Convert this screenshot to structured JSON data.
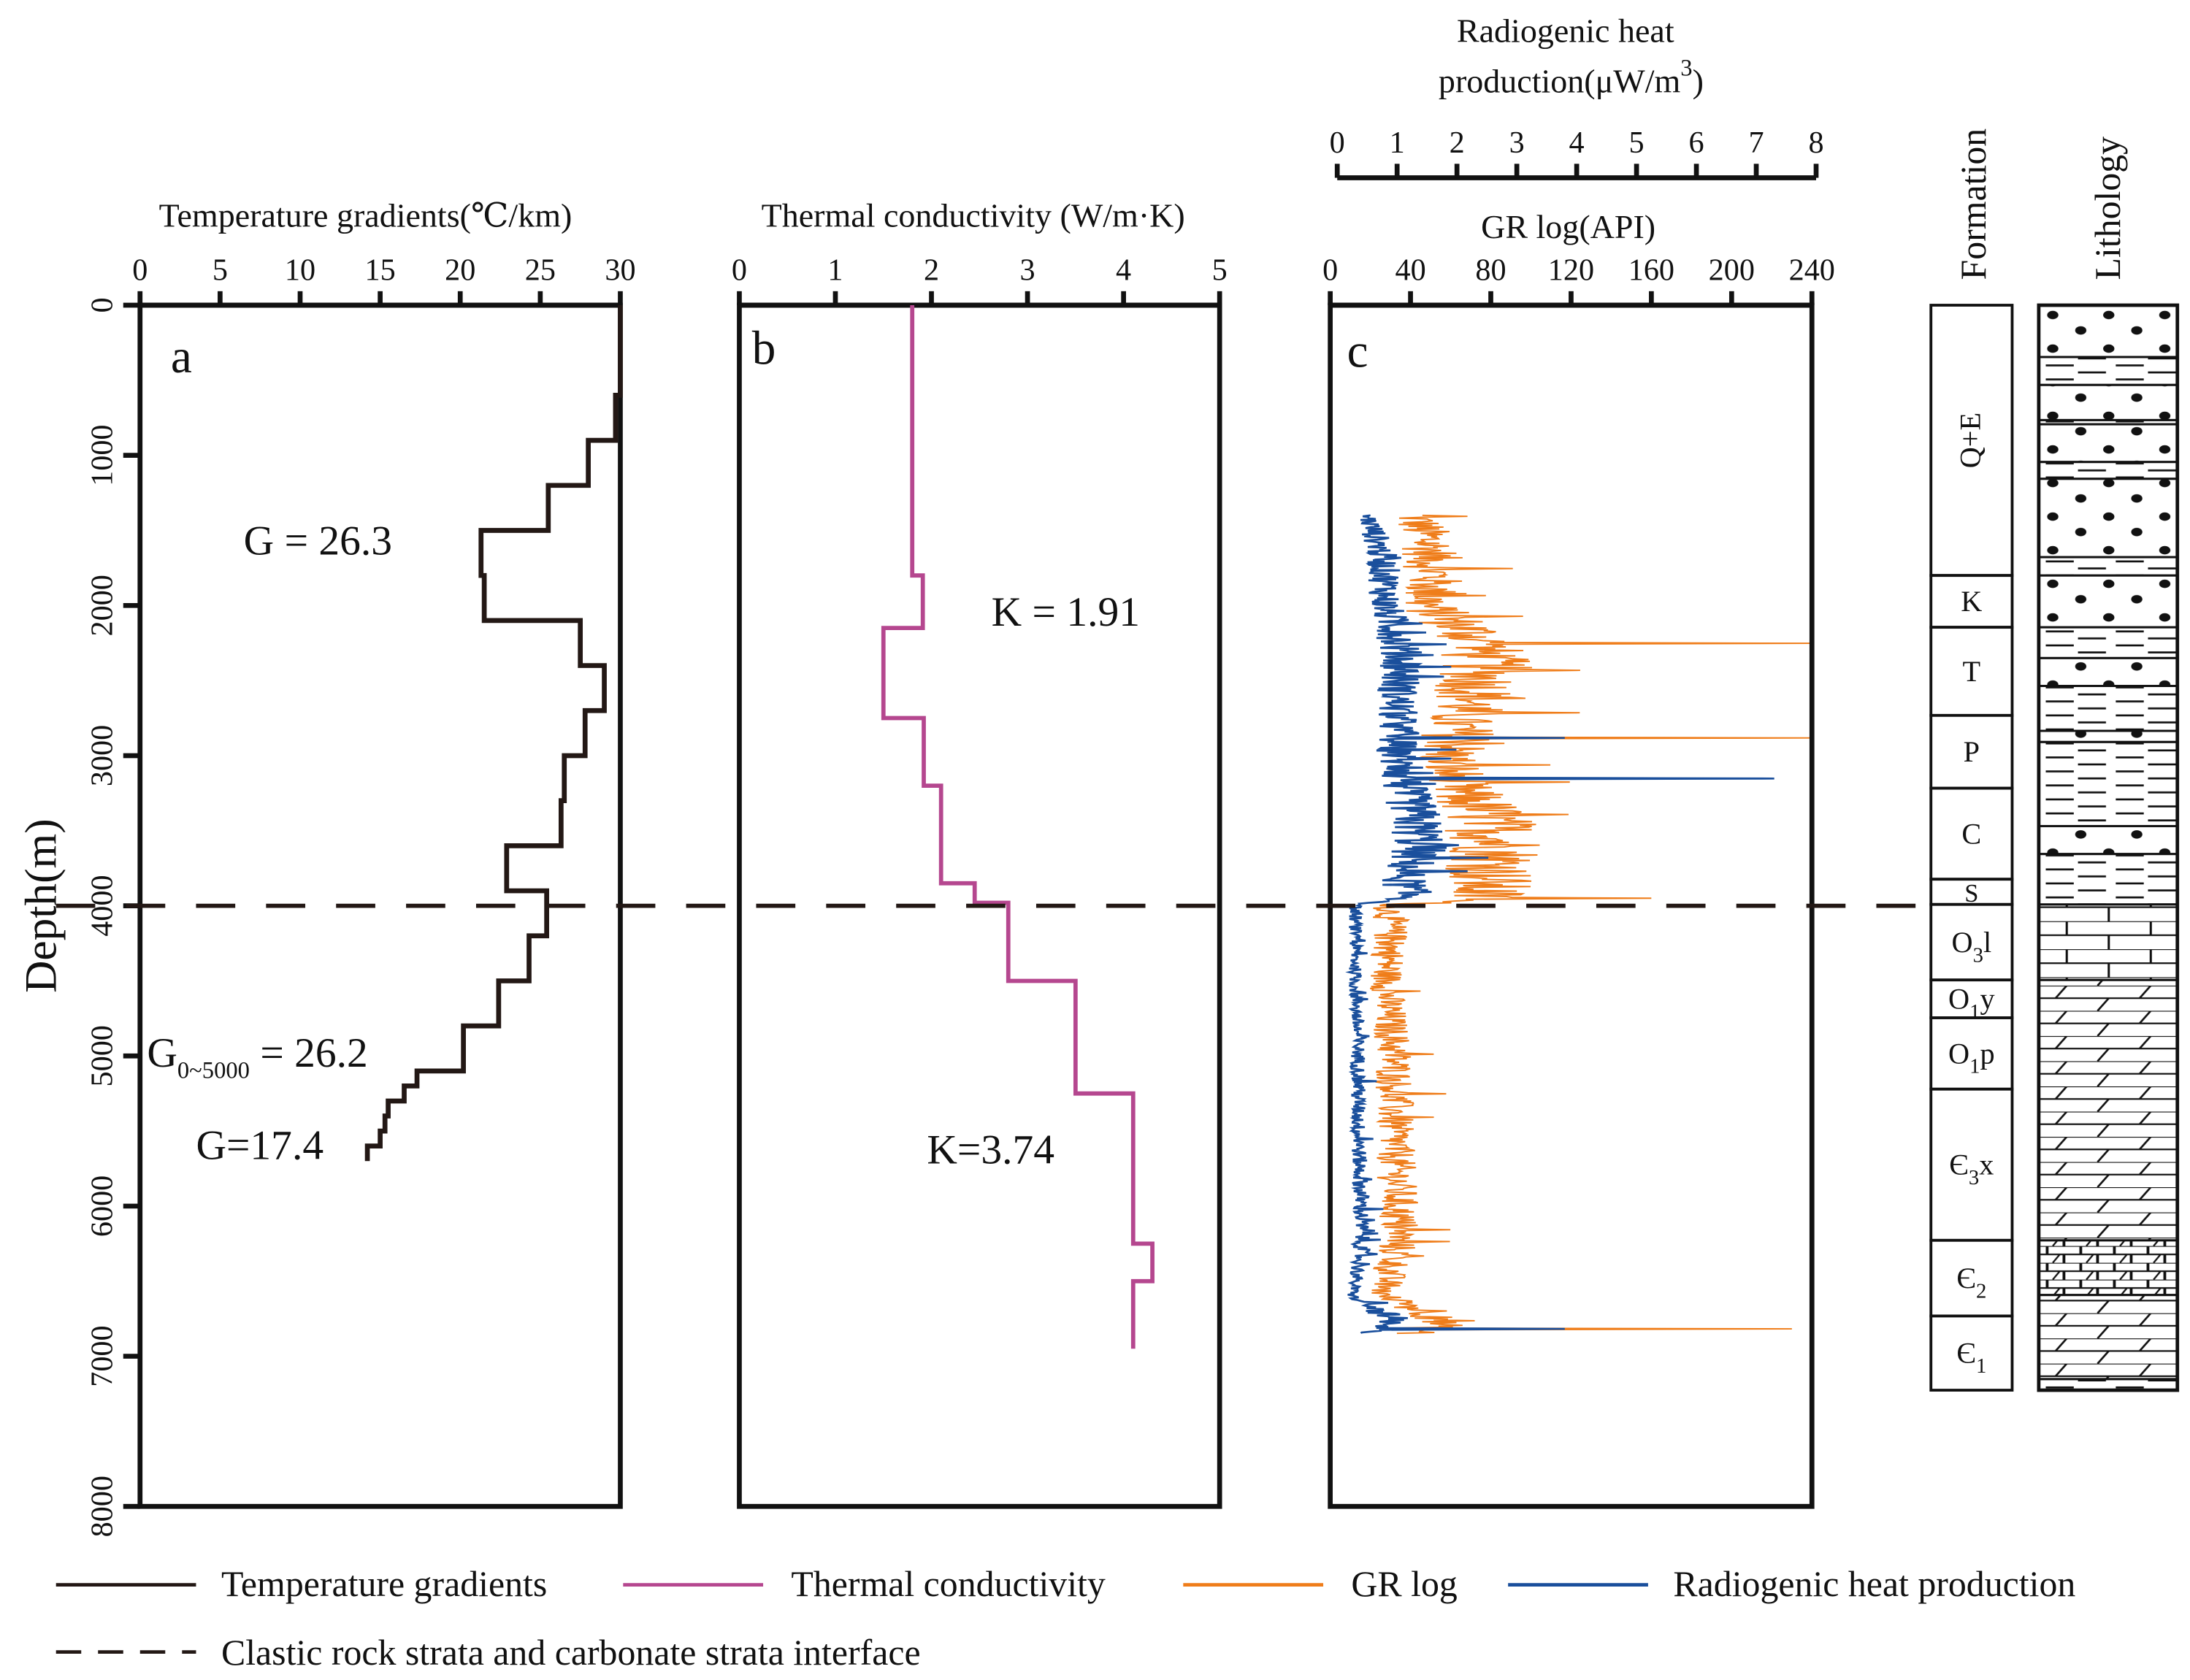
{
  "chart_data": [
    {
      "id": "a",
      "type": "line",
      "panel_label": "a",
      "xlabel": "Temperature gradients(℃/km)",
      "xlim": [
        0,
        30
      ],
      "xticks": [
        "0",
        "5",
        "10",
        "15",
        "20",
        "25",
        "30"
      ],
      "ylabel": "Depth(m)",
      "ylim": [
        0,
        8000
      ],
      "yticks": [
        "0",
        "1000",
        "2000",
        "3000",
        "4000",
        "5000",
        "6000",
        "7000",
        "8000"
      ],
      "color": "#231815",
      "steps": [
        [
          0,
          600,
          30
        ],
        [
          600,
          900,
          29.7
        ],
        [
          900,
          1200,
          28
        ],
        [
          1200,
          1500,
          25.5
        ],
        [
          1500,
          1800,
          21.3
        ],
        [
          1800,
          2100,
          21.5
        ],
        [
          2100,
          2400,
          27.5
        ],
        [
          2400,
          2700,
          29
        ],
        [
          2700,
          3000,
          27.8
        ],
        [
          3000,
          3300,
          26.5
        ],
        [
          3300,
          3600,
          26.3
        ],
        [
          3600,
          3900,
          22.9
        ],
        [
          3900,
          4200,
          25.4
        ],
        [
          4200,
          4500,
          24.3
        ],
        [
          4500,
          4800,
          22.4
        ],
        [
          4800,
          5100,
          20.2
        ],
        [
          5100,
          5200,
          17.3
        ],
        [
          5200,
          5300,
          16.5
        ],
        [
          5300,
          5400,
          15.5
        ],
        [
          5400,
          5500,
          15.3
        ],
        [
          5500,
          5600,
          15
        ],
        [
          5600,
          5700,
          14.2
        ]
      ],
      "annotations": {
        "g_upper": "G = 26.3",
        "g_avg_base": "G",
        "g_avg_sub": "0~5000",
        "g_avg_val": " = 26.2",
        "g_lower": "G=17.4"
      }
    },
    {
      "id": "b",
      "type": "line",
      "panel_label": "b",
      "xlabel": "Thermal conductivity (W/m·K)",
      "xlim": [
        0,
        5
      ],
      "xticks": [
        "0",
        "1",
        "2",
        "3",
        "4",
        "5"
      ],
      "ylim": [
        0,
        8000
      ],
      "color": "#b5478f",
      "steps": [
        [
          0,
          1800,
          1.8
        ],
        [
          1800,
          2150,
          1.91
        ],
        [
          2150,
          2750,
          1.5
        ],
        [
          2750,
          3200,
          1.92
        ],
        [
          3200,
          3850,
          2.1
        ],
        [
          3850,
          3980,
          2.45
        ],
        [
          3980,
          4500,
          2.8
        ],
        [
          4500,
          5250,
          3.5
        ],
        [
          5250,
          6250,
          4.1
        ],
        [
          6250,
          6500,
          4.3
        ],
        [
          6500,
          6950,
          4.1
        ]
      ],
      "annotations": {
        "k_upper": "K = 1.91",
        "k_lower": "K=3.74"
      }
    },
    {
      "id": "c",
      "type": "line",
      "panel_label": "c",
      "xlabel": "GR log(API)",
      "xlim": [
        0,
        240
      ],
      "xticks": [
        "0",
        "40",
        "80",
        "120",
        "160",
        "200",
        "240"
      ],
      "x2label_line1": "Radiogenic heat",
      "x2label_line2": "production(μW/m",
      "x2label_sup": "3",
      "x2label_end": ")",
      "x2lim": [
        0,
        8
      ],
      "x2ticks": [
        "0",
        "1",
        "2",
        "3",
        "4",
        "5",
        "6",
        "7",
        "8"
      ],
      "ylim": [
        0,
        8000
      ],
      "series": [
        {
          "name": "GR log",
          "color": "#ef7d1a",
          "depth_range": [
            1400,
            6850
          ],
          "profile": [
            [
              1400,
              42
            ],
            [
              1600,
              50
            ],
            [
              1800,
              52
            ],
            [
              2000,
              48
            ],
            [
              2200,
              72
            ],
            [
              2400,
              78
            ],
            [
              2600,
              72
            ],
            [
              2800,
              62
            ],
            [
              2900,
              66
            ],
            [
              3000,
              58
            ],
            [
              3200,
              62
            ],
            [
              3400,
              78
            ],
            [
              3600,
              85
            ],
            [
              3800,
              80
            ],
            [
              3950,
              75
            ],
            [
              4000,
              30
            ],
            [
              4200,
              30
            ],
            [
              4500,
              28
            ],
            [
              4800,
              30
            ],
            [
              5000,
              32
            ],
            [
              5500,
              32
            ],
            [
              6000,
              34
            ],
            [
              6300,
              33
            ],
            [
              6600,
              26
            ],
            [
              6750,
              60
            ],
            [
              6850,
              40
            ]
          ],
          "spikes": [
            [
              2250,
              240
            ],
            [
              2880,
              240
            ],
            [
              3150,
              160
            ],
            [
              3950,
              160
            ],
            [
              6820,
              230
            ]
          ]
        },
        {
          "name": "Radiogenic heat production",
          "color": "#1a4f9c",
          "depth_range": [
            1400,
            6850
          ],
          "profile": [
            [
              1400,
              0.5
            ],
            [
              1600,
              0.7
            ],
            [
              1800,
              0.8
            ],
            [
              2000,
              0.8
            ],
            [
              2200,
              1.0
            ],
            [
              2400,
              1.1
            ],
            [
              2600,
              1.0
            ],
            [
              2800,
              1.0
            ],
            [
              3000,
              1.0
            ],
            [
              3200,
              1.1
            ],
            [
              3400,
              1.3
            ],
            [
              3600,
              1.4
            ],
            [
              3800,
              1.1
            ],
            [
              3950,
              1.2
            ],
            [
              4000,
              0.3
            ],
            [
              4500,
              0.3
            ],
            [
              5000,
              0.35
            ],
            [
              5500,
              0.35
            ],
            [
              6000,
              0.4
            ],
            [
              6300,
              0.4
            ],
            [
              6600,
              0.25
            ],
            [
              6750,
              0.9
            ],
            [
              6850,
              0.5
            ]
          ],
          "spikes": [
            [
              2880,
              3.8
            ],
            [
              3150,
              7.3
            ],
            [
              6820,
              3.8
            ]
          ]
        }
      ]
    }
  ],
  "formation": {
    "title": "Formation",
    "units": [
      {
        "top": 0,
        "base": 1800,
        "base_text": "Q+E",
        "sub": "",
        "rest": "",
        "rotated": true
      },
      {
        "top": 1800,
        "base": 2145,
        "base_text": "K",
        "sub": "",
        "rest": ""
      },
      {
        "top": 2145,
        "base": 2732,
        "base_text": "T",
        "sub": "",
        "rest": ""
      },
      {
        "top": 2732,
        "base": 3217,
        "base_text": "P",
        "sub": "",
        "rest": ""
      },
      {
        "top": 3217,
        "base": 3823,
        "base_text": "C",
        "sub": "",
        "rest": ""
      },
      {
        "top": 3823,
        "base": 3991,
        "base_text": "S",
        "sub": "",
        "rest": ""
      },
      {
        "top": 3991,
        "base": 4494,
        "base_text": "O",
        "sub": "3",
        "rest": "l"
      },
      {
        "top": 4494,
        "base": 4746,
        "base_text": "O",
        "sub": "1",
        "rest": "y"
      },
      {
        "top": 4746,
        "base": 5221,
        "base_text": "O",
        "sub": "1",
        "rest": "p"
      },
      {
        "top": 5221,
        "base": 6228,
        "base_text": "Є",
        "sub": "3",
        "rest": "x"
      },
      {
        "top": 6228,
        "base": 6732,
        "base_text": "Є",
        "sub": "2",
        "rest": ""
      },
      {
        "top": 6732,
        "base": 7226,
        "base_text": "Є",
        "sub": "1",
        "rest": ""
      }
    ]
  },
  "lithology": {
    "title": "Lithology",
    "layers": [
      {
        "top": 0,
        "base": 345,
        "type": "sandstone"
      },
      {
        "top": 345,
        "base": 531,
        "type": "mudstone"
      },
      {
        "top": 531,
        "base": 765,
        "type": "sandstone"
      },
      {
        "top": 765,
        "base": 793,
        "type": "mudstone"
      },
      {
        "top": 793,
        "base": 1044,
        "type": "sandstone"
      },
      {
        "top": 1044,
        "base": 1156,
        "type": "mudstone"
      },
      {
        "top": 1156,
        "base": 1678,
        "type": "sandstone"
      },
      {
        "top": 1678,
        "base": 1800,
        "type": "mudstone"
      },
      {
        "top": 1800,
        "base": 2145,
        "type": "sandstone"
      },
      {
        "top": 2145,
        "base": 2350,
        "type": "mudstone"
      },
      {
        "top": 2350,
        "base": 2536,
        "type": "sandstone"
      },
      {
        "top": 2536,
        "base": 2835,
        "type": "mudstone"
      },
      {
        "top": 2835,
        "base": 2909,
        "type": "sandstone"
      },
      {
        "top": 2909,
        "base": 3469,
        "type": "mudstone"
      },
      {
        "top": 3469,
        "base": 3655,
        "type": "sandstone"
      },
      {
        "top": 3655,
        "base": 3991,
        "type": "mudstone"
      },
      {
        "top": 3991,
        "base": 4494,
        "type": "limestone"
      },
      {
        "top": 4494,
        "base": 6228,
        "type": "dolomite"
      },
      {
        "top": 6228,
        "base": 6592,
        "type": "dolomitic-limestone"
      },
      {
        "top": 6592,
        "base": 7152,
        "type": "dolomite"
      },
      {
        "top": 7152,
        "base": 7226,
        "type": "mudstone"
      }
    ]
  },
  "interface_depth": 4000,
  "legend": [
    {
      "label": "Temperature gradients",
      "color": "#231815",
      "style": "solid"
    },
    {
      "label": "Thermal conductivity",
      "color": "#b5478f",
      "style": "solid"
    },
    {
      "label": "GR log",
      "color": "#ef7d1a",
      "style": "solid"
    },
    {
      "label": "Radiogenic heat production",
      "color": "#1a4f9c",
      "style": "solid"
    },
    {
      "label": "Clastic rock strata and carbonate strata interface",
      "color": "#231815",
      "style": "dashed"
    }
  ]
}
